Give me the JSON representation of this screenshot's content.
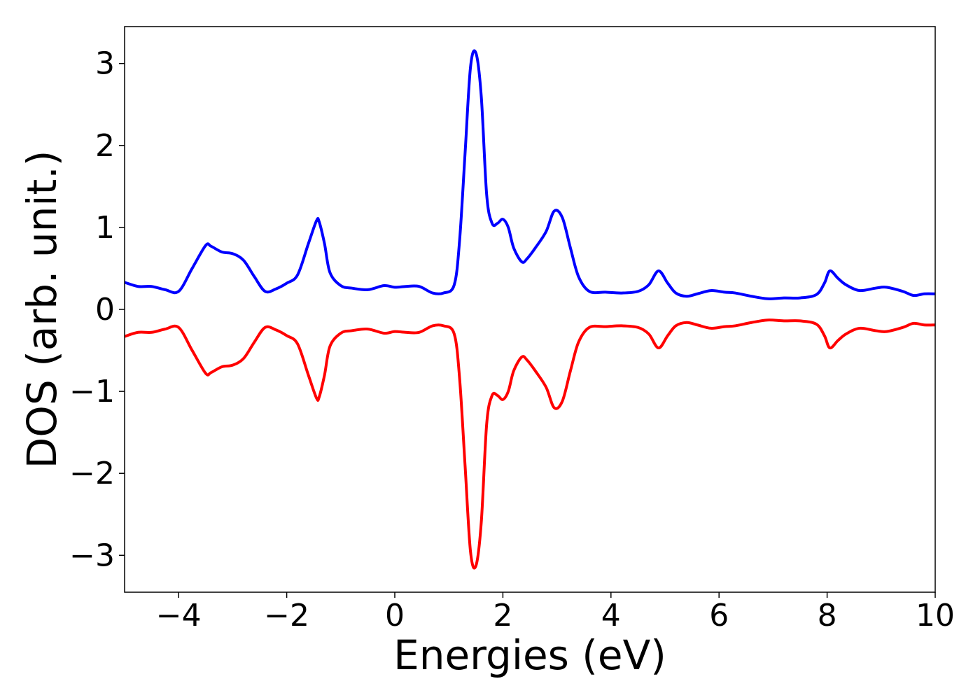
{
  "chart_data": {
    "type": "line",
    "title": "",
    "xlabel": "Energies (eV)",
    "ylabel": "DOS (arb. unit.)",
    "xlim": [
      -5,
      10
    ],
    "ylim": [
      -3.45,
      3.45
    ],
    "xticks": [
      -4,
      -2,
      0,
      2,
      4,
      6,
      8,
      10
    ],
    "yticks": [
      -3,
      -2,
      -1,
      0,
      1,
      2,
      3
    ],
    "xtick_labels": [
      "−4",
      "−2",
      "0",
      "2",
      "4",
      "6",
      "8",
      "10"
    ],
    "ytick_labels": [
      "−3",
      "−2",
      "−1",
      "0",
      "1",
      "2",
      "3"
    ],
    "grid": false,
    "legend": "none",
    "x": [
      -5.0,
      -4.75,
      -4.5,
      -4.25,
      -4.0,
      -3.75,
      -3.5,
      -3.4,
      -3.2,
      -3.0,
      -2.8,
      -2.6,
      -2.4,
      -2.2,
      -2.0,
      -1.8,
      -1.6,
      -1.45,
      -1.4,
      -1.3,
      -1.2,
      -1.0,
      -0.8,
      -0.5,
      -0.2,
      0.0,
      0.2,
      0.45,
      0.7,
      0.9,
      1.1,
      1.2,
      1.3,
      1.4,
      1.5,
      1.6,
      1.7,
      1.8,
      1.9,
      2.0,
      2.1,
      2.2,
      2.35,
      2.45,
      2.6,
      2.8,
      2.95,
      3.1,
      3.25,
      3.4,
      3.6,
      3.9,
      4.2,
      4.5,
      4.7,
      4.88,
      5.05,
      5.2,
      5.4,
      5.6,
      5.85,
      6.1,
      6.3,
      6.6,
      6.9,
      7.2,
      7.5,
      7.8,
      7.95,
      8.05,
      8.2,
      8.35,
      8.6,
      8.9,
      9.1,
      9.4,
      9.6,
      9.8,
      10.0
    ],
    "series": [
      {
        "color": "#0000ff",
        "values": [
          0.33,
          0.28,
          0.28,
          0.24,
          0.22,
          0.5,
          0.78,
          0.77,
          0.7,
          0.68,
          0.6,
          0.4,
          0.22,
          0.25,
          0.32,
          0.42,
          0.8,
          1.08,
          1.07,
          0.8,
          0.45,
          0.29,
          0.26,
          0.24,
          0.29,
          0.27,
          0.28,
          0.28,
          0.2,
          0.2,
          0.3,
          0.85,
          1.9,
          2.95,
          3.13,
          2.6,
          1.4,
          1.05,
          1.05,
          1.1,
          1.0,
          0.75,
          0.58,
          0.62,
          0.75,
          0.95,
          1.2,
          1.12,
          0.75,
          0.4,
          0.22,
          0.21,
          0.2,
          0.22,
          0.3,
          0.47,
          0.32,
          0.2,
          0.16,
          0.19,
          0.23,
          0.21,
          0.2,
          0.16,
          0.13,
          0.14,
          0.14,
          0.18,
          0.32,
          0.47,
          0.38,
          0.3,
          0.23,
          0.26,
          0.27,
          0.22,
          0.17,
          0.19,
          0.19
        ]
      },
      {
        "color": "#ff0000",
        "values": [
          -0.33,
          -0.28,
          -0.28,
          -0.24,
          -0.22,
          -0.5,
          -0.78,
          -0.77,
          -0.7,
          -0.68,
          -0.6,
          -0.4,
          -0.22,
          -0.25,
          -0.32,
          -0.42,
          -0.8,
          -1.08,
          -1.07,
          -0.8,
          -0.45,
          -0.29,
          -0.26,
          -0.24,
          -0.29,
          -0.27,
          -0.28,
          -0.28,
          -0.2,
          -0.2,
          -0.3,
          -0.85,
          -1.9,
          -2.95,
          -3.13,
          -2.6,
          -1.4,
          -1.05,
          -1.05,
          -1.1,
          -1.0,
          -0.75,
          -0.58,
          -0.62,
          -0.75,
          -0.95,
          -1.2,
          -1.12,
          -0.75,
          -0.4,
          -0.22,
          -0.21,
          -0.2,
          -0.22,
          -0.3,
          -0.47,
          -0.32,
          -0.2,
          -0.16,
          -0.19,
          -0.23,
          -0.21,
          -0.2,
          -0.16,
          -0.13,
          -0.14,
          -0.14,
          -0.18,
          -0.32,
          -0.47,
          -0.38,
          -0.3,
          -0.23,
          -0.26,
          -0.27,
          -0.22,
          -0.17,
          -0.19,
          -0.19
        ]
      }
    ]
  }
}
